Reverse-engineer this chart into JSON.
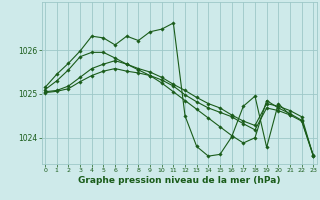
{
  "background_color": "#ceeaea",
  "plot_bg_color": "#ceeaea",
  "grid_color": "#9dc8c8",
  "line_color": "#1a5c1a",
  "marker_color": "#1a5c1a",
  "xlabel": "Graphe pression niveau de la mer (hPa)",
  "xlabel_fontsize": 6.5,
  "yticks": [
    1024,
    1025,
    1026
  ],
  "xticks": [
    0,
    1,
    2,
    3,
    4,
    5,
    6,
    7,
    8,
    9,
    10,
    11,
    12,
    13,
    14,
    15,
    16,
    17,
    18,
    19,
    20,
    21,
    22,
    23
  ],
  "xlim": [
    -0.3,
    23.3
  ],
  "ylim": [
    1023.4,
    1027.1
  ],
  "series": [
    [
      1025.1,
      1025.3,
      1025.55,
      1025.85,
      1025.95,
      1025.95,
      1025.82,
      1025.68,
      1025.55,
      1025.42,
      1025.25,
      1025.05,
      1024.85,
      1024.65,
      1024.45,
      1024.25,
      1024.05,
      1023.88,
      1024.0,
      1024.85,
      1024.68,
      1024.55,
      1024.4,
      1023.6
    ],
    [
      1025.05,
      1025.08,
      1025.18,
      1025.38,
      1025.58,
      1025.68,
      1025.76,
      1025.68,
      1025.58,
      1025.5,
      1025.38,
      1025.22,
      1025.08,
      1024.92,
      1024.78,
      1024.68,
      1024.52,
      1024.38,
      1024.28,
      1024.78,
      1024.72,
      1024.62,
      1024.48,
      1023.58
    ],
    [
      1025.03,
      1025.06,
      1025.12,
      1025.28,
      1025.42,
      1025.52,
      1025.58,
      1025.52,
      1025.48,
      1025.42,
      1025.32,
      1025.18,
      1024.98,
      1024.82,
      1024.68,
      1024.58,
      1024.48,
      1024.32,
      1024.18,
      1024.68,
      1024.62,
      1024.52,
      1024.38,
      1023.58
    ],
    [
      1025.15,
      1025.45,
      1025.7,
      1025.98,
      1026.32,
      1026.28,
      1026.12,
      1026.32,
      1026.22,
      1026.42,
      1026.48,
      1026.62,
      1024.5,
      1023.8,
      1023.58,
      1023.62,
      1024.02,
      1024.72,
      1024.95,
      1023.78,
      1024.78,
      1024.52,
      null,
      null
    ]
  ]
}
